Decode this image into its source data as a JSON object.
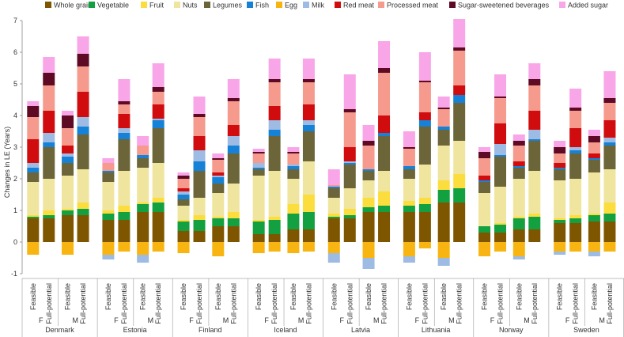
{
  "chart_data": {
    "type": "bar",
    "stacked": true,
    "ylabel": "Changes in LE (Years)",
    "ylim": [
      -1,
      7
    ],
    "yticks": [
      -1,
      0,
      1,
      2,
      3,
      4,
      5,
      6,
      7
    ],
    "grid": false,
    "legend_position": "top",
    "countries": [
      "Denmark",
      "Estonia",
      "Finland",
      "Iceland",
      "Latvia",
      "Lithuania",
      "Norway",
      "Sweden"
    ],
    "sexes": [
      "F",
      "M"
    ],
    "scenarios": [
      "Feasible",
      "Full-potential"
    ],
    "series": [
      {
        "name": "Whole grain",
        "color": "#7f5600",
        "values": [
          0.75,
          0.75,
          0.85,
          0.85,
          0.7,
          0.7,
          0.95,
          0.95,
          0.35,
          0.35,
          0.5,
          0.5,
          0.25,
          0.25,
          0.4,
          0.4,
          0.75,
          0.75,
          0.95,
          0.95,
          0.95,
          0.95,
          1.25,
          1.25,
          0.3,
          0.3,
          0.4,
          0.4,
          0.6,
          0.6,
          0.65,
          0.65
        ]
      },
      {
        "name": "Vegetable",
        "color": "#12a040",
        "values": [
          0.05,
          0.1,
          0.15,
          0.2,
          0.2,
          0.25,
          0.25,
          0.3,
          0.3,
          0.35,
          0.25,
          0.25,
          0.4,
          0.45,
          0.5,
          0.55,
          0.05,
          0.1,
          0.15,
          0.2,
          0.2,
          0.25,
          0.4,
          0.45,
          0.2,
          0.25,
          0.35,
          0.4,
          0.1,
          0.15,
          0.2,
          0.25
        ]
      },
      {
        "name": "Fruit",
        "color": "#fcdd3e",
        "values": [
          0.05,
          0.15,
          0.05,
          0.2,
          0.1,
          0.2,
          0.05,
          0.15,
          0.05,
          0.15,
          0.05,
          0.2,
          0.05,
          0.1,
          0.3,
          0.55,
          0.1,
          0.2,
          0.3,
          0.45,
          0.15,
          0.2,
          0.3,
          0.45,
          0,
          0.05,
          0.05,
          0.1,
          0.05,
          0.1,
          0.05,
          0.35
        ]
      },
      {
        "name": "Nuts",
        "color": "#f0e59e",
        "values": [
          1.05,
          1,
          1.05,
          1.05,
          0.9,
          1.1,
          1.1,
          1.1,
          0.45,
          0.55,
          0.75,
          0.9,
          1.4,
          1.45,
          0.8,
          1.05,
          0.5,
          0.65,
          0.55,
          0.65,
          0.7,
          1.05,
          1.1,
          1.05,
          1.05,
          1.15,
          1.2,
          1.35,
          1.2,
          1.15,
          1.3,
          1.05
        ]
      },
      {
        "name": "Legumes",
        "color": "#6b6539",
        "values": [
          0.3,
          1,
          0.4,
          1.1,
          0.3,
          1,
          0.3,
          1.1,
          0.2,
          0.85,
          0.3,
          0.95,
          0.2,
          1.1,
          0.3,
          0.95,
          0.3,
          0.75,
          0.3,
          1.1,
          0.3,
          1.2,
          0.5,
          1.2,
          0.35,
          0.95,
          0.35,
          0.95,
          0.35,
          0.8,
          0.4,
          0.75
        ]
      },
      {
        "name": "Fish",
        "color": "#1582d8",
        "values": [
          0.15,
          0.15,
          0.2,
          0.25,
          0.05,
          0.2,
          0.1,
          0.25,
          0.15,
          0.3,
          0.2,
          0.25,
          0.05,
          0.2,
          0.1,
          0.2,
          0.05,
          0.05,
          0.05,
          0.1,
          0.1,
          0.2,
          0.1,
          0.25,
          0.05,
          0.05,
          0.05,
          0.05,
          0.05,
          0.1,
          0.05,
          0.1
        ]
      },
      {
        "name": "Egg",
        "color": "#f8b511",
        "values": [
          -0.4,
          0,
          -0.4,
          0,
          -0.4,
          -0.3,
          -0.4,
          -0.3,
          -0.35,
          0,
          -0.45,
          0,
          -0.35,
          -0.3,
          -0.35,
          -0.3,
          -0.35,
          0,
          -0.5,
          0,
          -0.45,
          -0.2,
          -0.5,
          0,
          -0.45,
          -0.3,
          -0.45,
          0,
          -0.3,
          -0.3,
          -0.3,
          -0.3
        ]
      },
      {
        "name": "Milk",
        "color": "#9dbbe3",
        "values": [
          0.15,
          0.3,
          0.1,
          0.3,
          -0.15,
          0.15,
          -0.25,
          0.05,
          0.1,
          0.35,
          0.05,
          0.3,
          0.15,
          0.3,
          0.05,
          0.15,
          -0.3,
          0.05,
          -0.35,
          0,
          -0.2,
          0,
          -0.25,
          0,
          0,
          0.35,
          -0.1,
          0.3,
          -0.1,
          0.1,
          -0.15,
          0.15
        ]
      },
      {
        "name": "Red meat",
        "color": "#d10c0f",
        "values": [
          0.75,
          0.7,
          0.25,
          0.8,
          0,
          0.45,
          0,
          0.45,
          0.1,
          0.45,
          0.1,
          0.35,
          0,
          0.45,
          0,
          0.5,
          0,
          0.45,
          0,
          0.55,
          0,
          0.25,
          0,
          0.3,
          0.15,
          0.65,
          0.15,
          0.6,
          0.15,
          0.6,
          0.15,
          0.55
        ]
      },
      {
        "name": "Processed meat",
        "color": "#f59a8c",
        "values": [
          0.7,
          0.8,
          0.55,
          0.8,
          0.25,
          0.3,
          0.3,
          0.4,
          0.3,
          0.6,
          0.4,
          0.75,
          0.3,
          0.75,
          0.35,
          0.7,
          0.05,
          1.1,
          0.75,
          1.35,
          0.55,
          0.95,
          0.55,
          1.1,
          0.55,
          0.8,
          0.5,
          0.8,
          0.3,
          0.55,
          0.35,
          0.55
        ]
      },
      {
        "name": "Sugar-sweetened beverages",
        "color": "#5e0a24",
        "values": [
          0.35,
          0.4,
          0.4,
          0.4,
          0,
          0.1,
          0,
          0.15,
          0.1,
          0.1,
          0.05,
          0.1,
          0.05,
          0.1,
          0.05,
          0.1,
          0,
          0.1,
          0.15,
          0.15,
          0.05,
          0.05,
          0.05,
          0.1,
          0.2,
          0.05,
          0.15,
          0.2,
          0.2,
          0.1,
          0.2,
          0.15
        ]
      },
      {
        "name": "Added sugar",
        "color": "#f8a6e8",
        "values": [
          0.15,
          0.5,
          0.15,
          0.55,
          0.15,
          0.7,
          0.3,
          0.75,
          0.1,
          0.55,
          0.15,
          0.6,
          0.1,
          0.65,
          0.15,
          0.65,
          0.5,
          1.1,
          0.5,
          0.85,
          0.5,
          0.9,
          0.35,
          0.9,
          0.15,
          0.7,
          0.2,
          0.5,
          0.2,
          0.6,
          0.2,
          0.85
        ]
      }
    ]
  }
}
